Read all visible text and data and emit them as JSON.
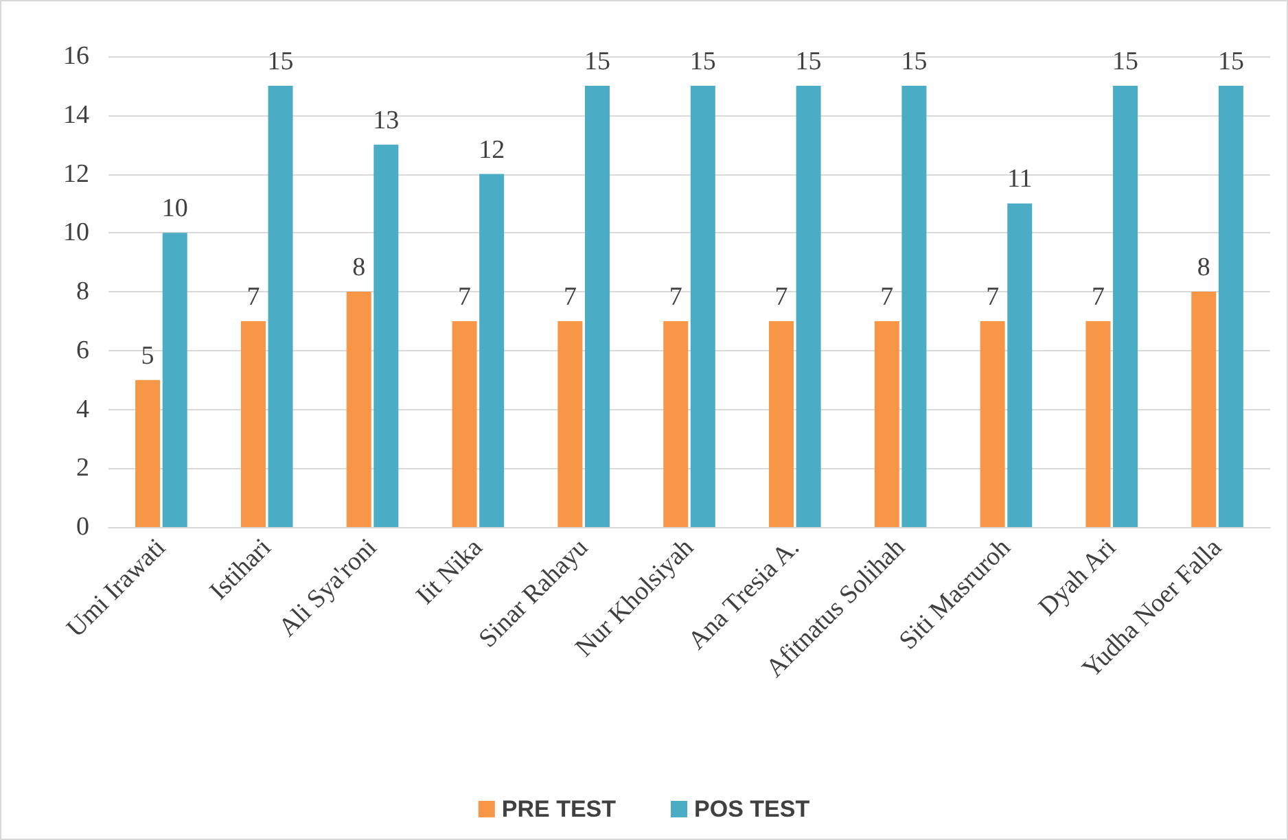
{
  "chart_data": {
    "type": "bar",
    "categories": [
      "Umi Irawati",
      "Istihari",
      "Ali Sya'roni",
      "Iit Nika",
      "Sinar Rahayu",
      "Nur Kholsiyah",
      "Ana Tresia A.",
      "Afitnatus Solihah",
      "Siti Masruroh",
      "Dyah Ari",
      "Yudha Noer Falla"
    ],
    "series": [
      {
        "name": "PRE TEST",
        "color": "#f79646",
        "values": [
          5,
          7,
          8,
          7,
          7,
          7,
          7,
          7,
          7,
          7,
          8
        ]
      },
      {
        "name": "POS TEST",
        "color": "#4bacc6",
        "values": [
          10,
          15,
          13,
          12,
          15,
          15,
          15,
          15,
          11,
          15,
          15
        ]
      }
    ],
    "ylim": [
      0,
      16
    ],
    "yticks": [
      0,
      2,
      4,
      6,
      8,
      10,
      12,
      14,
      16
    ],
    "grid": "y",
    "legend": "bottom",
    "data_labels": true
  }
}
